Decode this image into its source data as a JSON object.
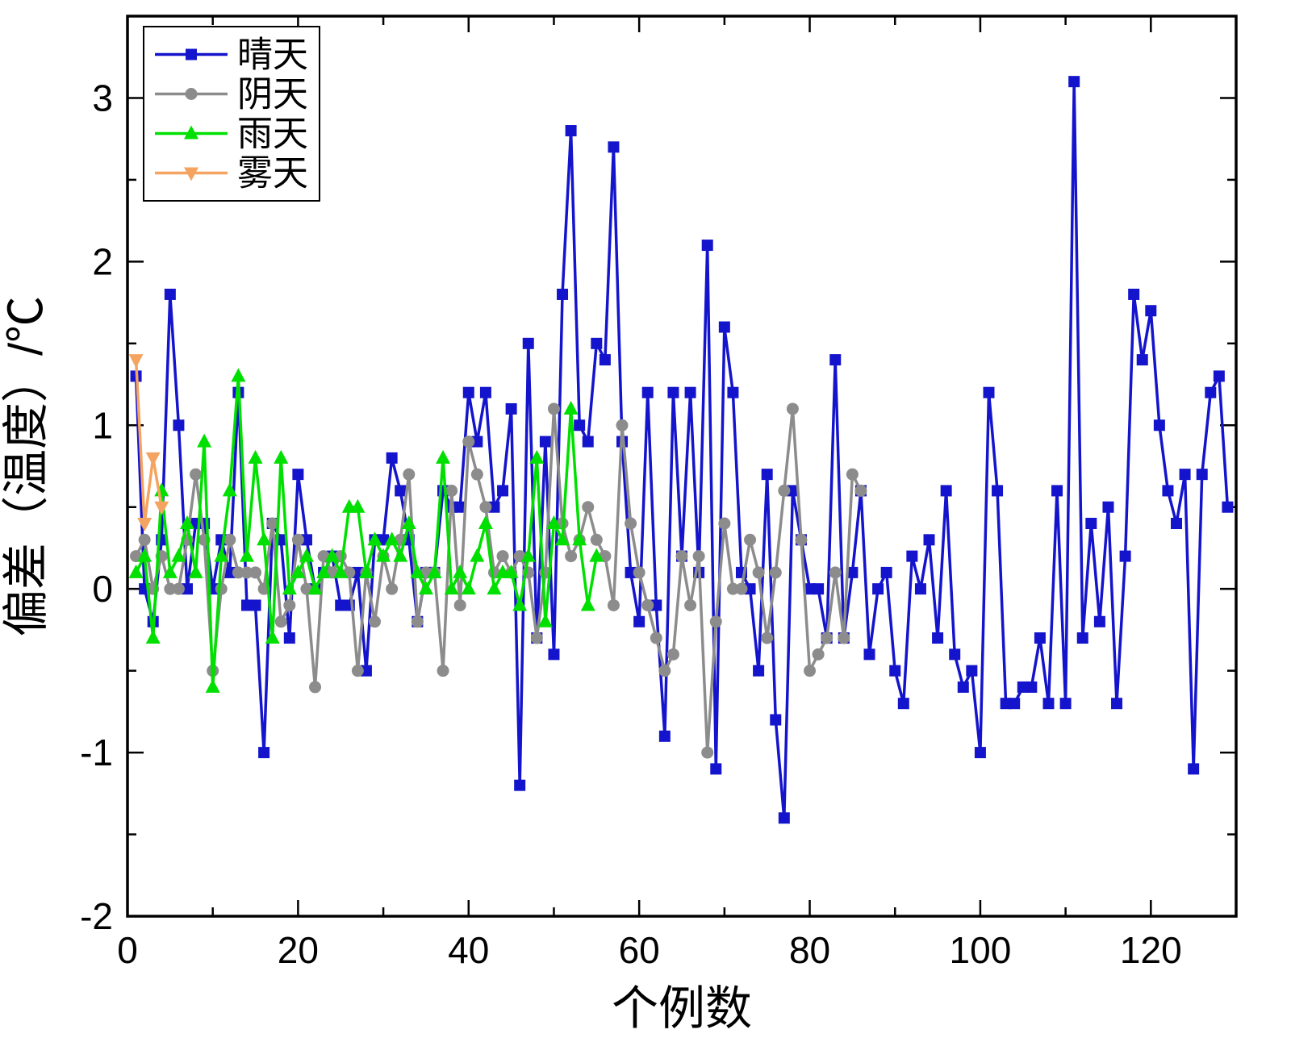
{
  "chart_data": {
    "type": "line",
    "title": "",
    "xlabel": "个例数",
    "ylabel": "偏差（温度）/℃",
    "xlim": [
      0,
      130
    ],
    "ylim": [
      -2,
      3.5
    ],
    "xticks": [
      0,
      20,
      40,
      60,
      80,
      100,
      120
    ],
    "yticks": [
      -2,
      -1,
      0,
      1,
      2,
      3
    ],
    "x_minor_step": 10,
    "y_minor_step": 0.5,
    "grid": false,
    "legend": {
      "position": "top-left",
      "border": true
    },
    "axis_color": "#000000",
    "background": "#ffffff",
    "series": [
      {
        "name": "晴天",
        "color": "#1414cc",
        "marker": "square",
        "x_start": 1,
        "values": [
          1.3,
          0.0,
          -0.2,
          0.3,
          1.8,
          1.0,
          0.0,
          0.4,
          0.4,
          0.0,
          0.3,
          0.1,
          1.2,
          -0.1,
          -0.1,
          -1.0,
          0.4,
          0.3,
          -0.3,
          0.7,
          0.3,
          0.0,
          0.1,
          0.2,
          -0.1,
          -0.1,
          0.1,
          -0.5,
          0.3,
          0.3,
          0.8,
          0.6,
          0.3,
          -0.2,
          0.1,
          0.1,
          0.6,
          0.5,
          0.5,
          1.2,
          0.9,
          1.2,
          0.5,
          0.6,
          1.1,
          -1.2,
          1.5,
          -0.3,
          0.9,
          -0.4,
          1.8,
          2.8,
          1.0,
          0.9,
          1.5,
          1.4,
          2.7,
          0.9,
          0.1,
          -0.2,
          1.2,
          -0.1,
          -0.9,
          1.2,
          0.2,
          1.2,
          0.1,
          2.1,
          -1.1,
          1.6,
          1.2,
          0.1,
          0.0,
          -0.5,
          0.7,
          -0.8,
          -1.4,
          0.6,
          0.3,
          0.0,
          0.0,
          -0.3,
          1.4,
          -0.3,
          0.1,
          0.6,
          -0.4,
          0.0,
          0.1,
          -0.5,
          -0.7,
          0.2,
          0.0,
          0.3,
          -0.3,
          0.6,
          -0.4,
          -0.6,
          -0.5,
          -1.0,
          1.2,
          0.6,
          -0.7,
          -0.7,
          -0.6,
          -0.6,
          -0.3,
          -0.7,
          0.6,
          -0.7,
          3.1,
          -0.3,
          0.4,
          -0.2,
          0.5,
          -0.7,
          0.2,
          1.8,
          1.4,
          1.7,
          1.0,
          0.6,
          0.4,
          0.7,
          -1.1,
          0.7,
          1.2,
          1.3,
          0.5
        ]
      },
      {
        "name": "阴天",
        "color": "#8c8c8c",
        "marker": "circle",
        "x_start": 1,
        "values": [
          0.2,
          0.3,
          0.0,
          0.2,
          0.0,
          0.0,
          0.3,
          0.7,
          0.3,
          -0.5,
          0.0,
          0.3,
          0.1,
          0.1,
          0.1,
          0.0,
          0.4,
          -0.2,
          -0.1,
          0.3,
          0.0,
          -0.6,
          0.2,
          0.1,
          0.2,
          0.1,
          -0.5,
          0.1,
          -0.2,
          0.2,
          0.0,
          0.3,
          0.7,
          -0.2,
          0.1,
          0.1,
          -0.5,
          0.6,
          -0.1,
          0.9,
          0.7,
          0.5,
          0.1,
          0.2,
          0.1,
          0.2,
          0.1,
          -0.3,
          0.1,
          1.1,
          0.4,
          0.2,
          0.3,
          0.5,
          0.3,
          0.2,
          -0.1,
          1.0,
          0.4,
          0.1,
          -0.1,
          -0.3,
          -0.5,
          -0.4,
          0.2,
          -0.1,
          0.2,
          -1.0,
          -0.2,
          0.4,
          0.0,
          0.0,
          0.3,
          0.1,
          -0.3,
          0.1,
          0.6,
          1.1,
          0.3,
          -0.5,
          -0.4,
          -0.3,
          0.1,
          -0.3,
          0.7,
          0.6
        ]
      },
      {
        "name": "雨天",
        "color": "#00e000",
        "marker": "triangle-up",
        "x_start": 1,
        "values": [
          0.1,
          0.2,
          -0.3,
          0.6,
          0.1,
          0.2,
          0.4,
          0.1,
          0.9,
          -0.6,
          0.2,
          0.6,
          1.3,
          0.2,
          0.8,
          0.3,
          -0.3,
          0.8,
          0.0,
          0.1,
          0.2,
          0.0,
          0.1,
          0.2,
          0.1,
          0.5,
          0.5,
          0.1,
          0.3,
          0.2,
          0.3,
          0.2,
          0.4,
          0.1,
          0.0,
          0.1,
          0.8,
          0.0,
          0.1,
          0.0,
          0.2,
          0.4,
          0.0,
          0.1,
          0.1,
          -0.1,
          0.2,
          0.8,
          -0.2,
          0.4,
          0.3,
          1.1,
          0.3,
          -0.1,
          0.2
        ]
      },
      {
        "name": "雾天",
        "color": "#f4a460",
        "marker": "triangle-down",
        "x_start": 1,
        "values": [
          1.4,
          0.4,
          0.8,
          0.5
        ]
      }
    ]
  }
}
